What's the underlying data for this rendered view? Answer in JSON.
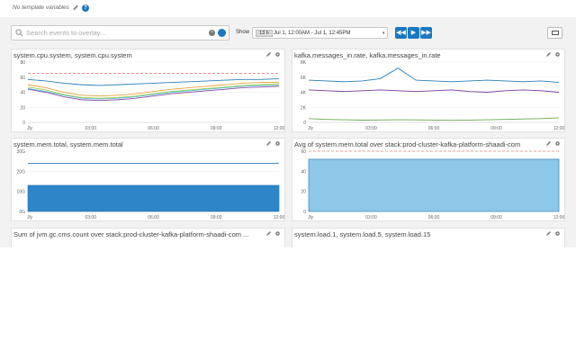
{
  "header": {
    "template_vars": "No template variables",
    "help_label": "?"
  },
  "search": {
    "placeholder": "Search events to overlay..."
  },
  "timebar": {
    "show_label": "Show",
    "chip": "13 h",
    "range": "Jul 1, 12:00AM - Jul 1, 12:45PM",
    "dropdown": "▾",
    "buttons": [
      "◀◀",
      "▶",
      "▶▶"
    ]
  },
  "colors": {
    "accent": "#1a78c2",
    "threshold": "#f08080",
    "bg": "#f2f2f2"
  },
  "panels": [
    {
      "title": "system.cpu.system, system.cpu.system"
    },
    {
      "title": "kafka.messages_in.rate, kafka.messages_in.rate"
    },
    {
      "title": "system.mem.total, system.mem.total"
    },
    {
      "title": "Avg of system.mem.total over stack:prod-cluster-kafka-platform-shaadi-com"
    },
    {
      "title": "Sum of jvm.gc.cms.count over stack:prod-cluster-kafka-platform-shaadi-com ..."
    },
    {
      "title": "system.load.1, system.load.5, system.load.15"
    }
  ],
  "chart_data": [
    {
      "type": "line",
      "x_ticks": [
        "Jly",
        "03:00",
        "06:00",
        "09:00",
        "12:00"
      ],
      "y_ticks": [
        "0",
        "20",
        "40",
        "60",
        "80"
      ],
      "ylim": [
        0,
        80
      ],
      "threshold": 65,
      "series": [
        {
          "color": "#2a7fb8",
          "values": [
            57,
            55,
            52,
            50,
            49,
            50,
            51,
            52,
            53,
            54,
            55,
            56,
            57,
            57,
            58
          ]
        },
        {
          "color": "#e8a13a",
          "values": [
            50,
            46,
            40,
            36,
            35,
            36,
            38,
            41,
            44,
            46,
            48,
            50,
            52,
            53,
            53
          ]
        },
        {
          "color": "#9fce4c",
          "values": [
            47,
            43,
            37,
            33,
            32,
            33,
            35,
            38,
            41,
            43,
            45,
            47,
            49,
            50,
            51
          ]
        },
        {
          "color": "#8a4ca8",
          "values": [
            44,
            40,
            34,
            30,
            29,
            30,
            32,
            35,
            38,
            40,
            42,
            44,
            46,
            47,
            48
          ]
        },
        {
          "color": "#5bbfd0",
          "values": [
            45,
            41,
            36,
            32,
            31,
            32,
            34,
            37,
            40,
            42,
            44,
            46,
            48,
            49,
            49
          ]
        }
      ]
    },
    {
      "type": "line",
      "x_ticks": [
        "Jly",
        "03:00",
        "06:00",
        "09:00",
        "12:00"
      ],
      "y_ticks": [
        "0",
        "2K",
        "4K",
        "6K",
        "8K"
      ],
      "ylim": [
        0,
        8000
      ],
      "series": [
        {
          "color": "#2a7fb8",
          "values": [
            5600,
            5500,
            5400,
            5500,
            5800,
            7200,
            5600,
            5500,
            5400,
            5500,
            5600,
            5500,
            5400,
            5500,
            5300
          ]
        },
        {
          "color": "#7a3da0",
          "values": [
            4300,
            4200,
            4100,
            4200,
            4300,
            4200,
            4100,
            4200,
            4300,
            4100,
            4000,
            4200,
            4300,
            4200,
            4000
          ]
        },
        {
          "color": "#6aa84f",
          "values": [
            500,
            400,
            350,
            300,
            320,
            350,
            330,
            300,
            280,
            300,
            350,
            400,
            450,
            500,
            600
          ]
        }
      ]
    },
    {
      "type": "area",
      "x_ticks": [
        "Jly",
        "03:00",
        "06:00",
        "09:00",
        "12:00"
      ],
      "y_ticks": [
        "0G",
        "10G",
        "20G",
        "30G"
      ],
      "ylim": [
        0,
        300
      ],
      "series": [
        {
          "color": "#2a7fb8",
          "values": [
            240,
            240
          ]
        },
        {
          "color": "#2e86c9",
          "values": [
            130,
            130
          ]
        }
      ]
    },
    {
      "type": "area",
      "x_ticks": [
        "Jly",
        "03:00",
        "06:00",
        "09:00",
        "12:00"
      ],
      "y_ticks": [
        "0",
        "20",
        "40",
        "60"
      ],
      "ylim": [
        0,
        60
      ],
      "threshold": 62,
      "series": [
        {
          "color": "#8ec8e8",
          "values": [
            52,
            52
          ]
        }
      ]
    }
  ]
}
